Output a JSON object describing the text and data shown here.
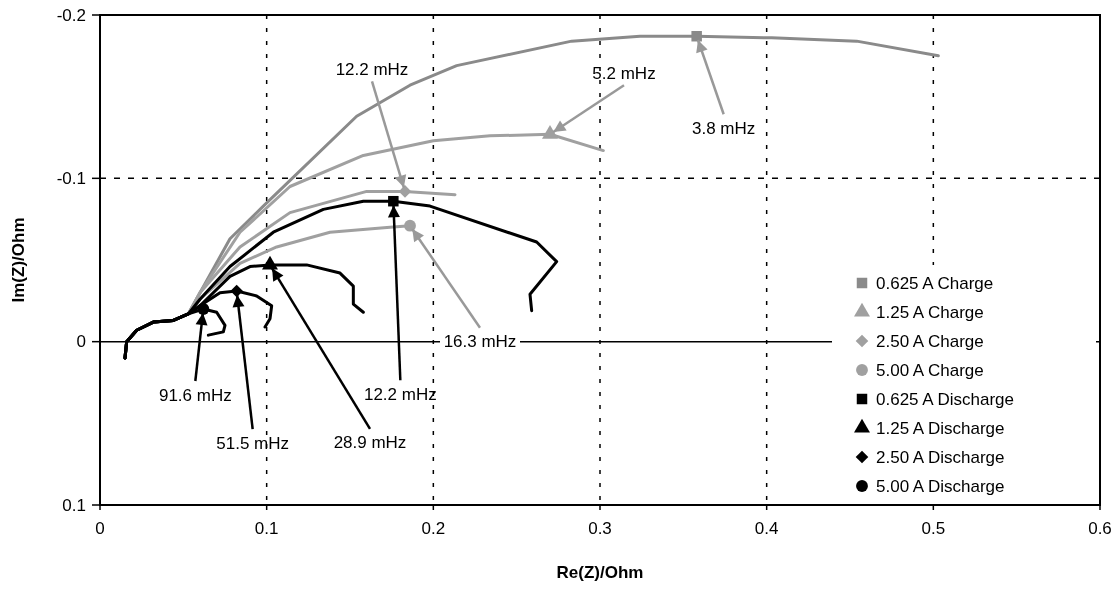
{
  "chart_data": {
    "type": "line",
    "xlabel": "Re(Z)/Ohm",
    "ylabel": "Im(Z)/Ohm",
    "xlim": [
      0,
      0.6
    ],
    "xticks": [
      0,
      0.1,
      0.2,
      0.3,
      0.4,
      0.5,
      0.6
    ],
    "ylim": [
      0.1,
      -0.2
    ],
    "yticks": [
      0.1,
      0,
      -0.1,
      -0.2
    ],
    "grid": true,
    "legend": "bottom right",
    "line_style": "solid",
    "marker": "none",
    "series": [
      {
        "color": "#8a8a8a",
        "x": [
          0.015,
          0.016,
          0.022,
          0.032,
          0.044,
          0.053,
          0.06,
          0.078,
          0.098,
          0.154,
          0.186,
          0.214,
          0.283,
          0.324,
          0.358,
          0.403,
          0.454,
          0.503
        ],
        "values": [
          0.01,
          0.0,
          -0.007,
          -0.012,
          -0.013,
          -0.017,
          -0.03,
          -0.063,
          -0.083,
          -0.138,
          -0.157,
          -0.169,
          -0.184,
          -0.187,
          -0.187,
          -0.186,
          -0.184,
          -0.175
        ]
      },
      {
        "color": "#a0a0a0",
        "x": [
          0.015,
          0.016,
          0.022,
          0.032,
          0.044,
          0.053,
          0.06,
          0.084,
          0.114,
          0.158,
          0.2,
          0.234,
          0.27,
          0.302
        ],
        "values": [
          0.01,
          0.0,
          -0.007,
          -0.012,
          -0.013,
          -0.017,
          -0.03,
          -0.067,
          -0.095,
          -0.114,
          -0.123,
          -0.126,
          -0.127,
          -0.117
        ]
      },
      {
        "color": "#a0a0a0",
        "x": [
          0.015,
          0.016,
          0.022,
          0.032,
          0.044,
          0.053,
          0.06,
          0.084,
          0.114,
          0.16,
          0.183,
          0.213
        ],
        "values": [
          0.01,
          0.0,
          -0.007,
          -0.012,
          -0.013,
          -0.017,
          -0.03,
          -0.058,
          -0.079,
          -0.092,
          -0.092,
          -0.09
        ]
      },
      {
        "color": "#a0a0a0",
        "x": [
          0.015,
          0.016,
          0.022,
          0.032,
          0.044,
          0.053,
          0.06,
          0.084,
          0.106,
          0.138,
          0.174,
          0.186
        ],
        "values": [
          0.01,
          0.0,
          -0.007,
          -0.012,
          -0.013,
          -0.017,
          -0.026,
          -0.048,
          -0.058,
          -0.067,
          -0.07,
          -0.071
        ]
      },
      {
        "color": "#000000",
        "x": [
          0.015,
          0.016,
          0.022,
          0.032,
          0.044,
          0.053,
          0.06,
          0.078,
          0.104,
          0.134,
          0.158,
          0.176,
          0.198,
          0.262,
          0.274,
          0.258,
          0.259
        ],
        "values": [
          0.01,
          0.0,
          -0.007,
          -0.012,
          -0.013,
          -0.017,
          -0.026,
          -0.046,
          -0.067,
          -0.081,
          -0.086,
          -0.086,
          -0.083,
          -0.061,
          -0.049,
          -0.029,
          -0.019
        ]
      },
      {
        "color": "#000000",
        "x": [
          0.015,
          0.016,
          0.022,
          0.032,
          0.044,
          0.053,
          0.06,
          0.078,
          0.09,
          0.102,
          0.124,
          0.144,
          0.152,
          0.152,
          0.158
        ],
        "values": [
          0.01,
          0.0,
          -0.007,
          -0.012,
          -0.013,
          -0.017,
          -0.022,
          -0.04,
          -0.046,
          -0.047,
          -0.047,
          -0.042,
          -0.034,
          -0.023,
          -0.018
        ]
      },
      {
        "color": "#000000",
        "x": [
          0.015,
          0.016,
          0.022,
          0.032,
          0.044,
          0.053,
          0.06,
          0.072,
          0.082,
          0.094,
          0.103,
          0.102,
          0.099
        ],
        "values": [
          0.01,
          0.0,
          -0.007,
          -0.012,
          -0.013,
          -0.017,
          -0.022,
          -0.03,
          -0.031,
          -0.028,
          -0.022,
          -0.014,
          -0.009
        ]
      },
      {
        "color": "#000000",
        "x": [
          0.015,
          0.016,
          0.022,
          0.032,
          0.044,
          0.053,
          0.062,
          0.07,
          0.075,
          0.074,
          0.065
        ],
        "values": [
          0.01,
          0.0,
          -0.007,
          -0.012,
          -0.013,
          -0.017,
          -0.02,
          -0.018,
          -0.01,
          -0.006,
          -0.004
        ]
      },
      {
        "type": "scatter",
        "name": "0.625 A Charge",
        "color": "#8a8a8a",
        "marker": "square",
        "x": [
          0.358
        ],
        "values": [
          -0.187
        ]
      },
      {
        "type": "scatter",
        "name": "1.25 A Charge",
        "color": "#a0a0a0",
        "marker": "triangle",
        "x": [
          0.27
        ],
        "values": [
          -0.127
        ]
      },
      {
        "type": "scatter",
        "name": "2.50 A Charge",
        "color": "#a0a0a0",
        "marker": "diamond",
        "x": [
          0.183
        ],
        "values": [
          -0.092
        ]
      },
      {
        "type": "scatter",
        "name": "5.00 A Charge",
        "color": "#a0a0a0",
        "marker": "circle",
        "x": [
          0.186
        ],
        "values": [
          -0.071
        ]
      },
      {
        "type": "scatter",
        "name": "0.625 A Discharge",
        "color": "#000000",
        "marker": "square",
        "x": [
          0.176
        ],
        "values": [
          -0.086
        ]
      },
      {
        "type": "scatter",
        "name": "1.25 A Discharge",
        "color": "#000000",
        "marker": "triangle",
        "x": [
          0.102
        ],
        "values": [
          -0.047
        ]
      },
      {
        "type": "scatter",
        "name": "2.50 A Discharge",
        "color": "#000000",
        "marker": "diamond",
        "x": [
          0.082
        ],
        "values": [
          -0.031
        ]
      },
      {
        "type": "scatter",
        "name": "5.00 A Discharge",
        "color": "#000000",
        "marker": "circle",
        "x": [
          0.062
        ],
        "values": [
          -0.02
        ]
      }
    ],
    "annotations": [
      {
        "text": "12.2 mHz",
        "x": 0.183,
        "y": -0.092
      },
      {
        "text": "5.2 mHz",
        "x": 0.27,
        "y": -0.127
      },
      {
        "text": "3.8 mHz",
        "x": 0.358,
        "y": -0.187
      },
      {
        "text": "16.3 mHz",
        "x": 0.186,
        "y": -0.071
      },
      {
        "text": "12.2 mHz",
        "x": 0.176,
        "y": -0.086
      },
      {
        "text": "91.6 mHz",
        "x": 0.062,
        "y": -0.02
      },
      {
        "text": "51.5 mHz",
        "x": 0.082,
        "y": -0.031
      },
      {
        "text": "28.9 mHz",
        "x": 0.102,
        "y": -0.047
      }
    ]
  }
}
